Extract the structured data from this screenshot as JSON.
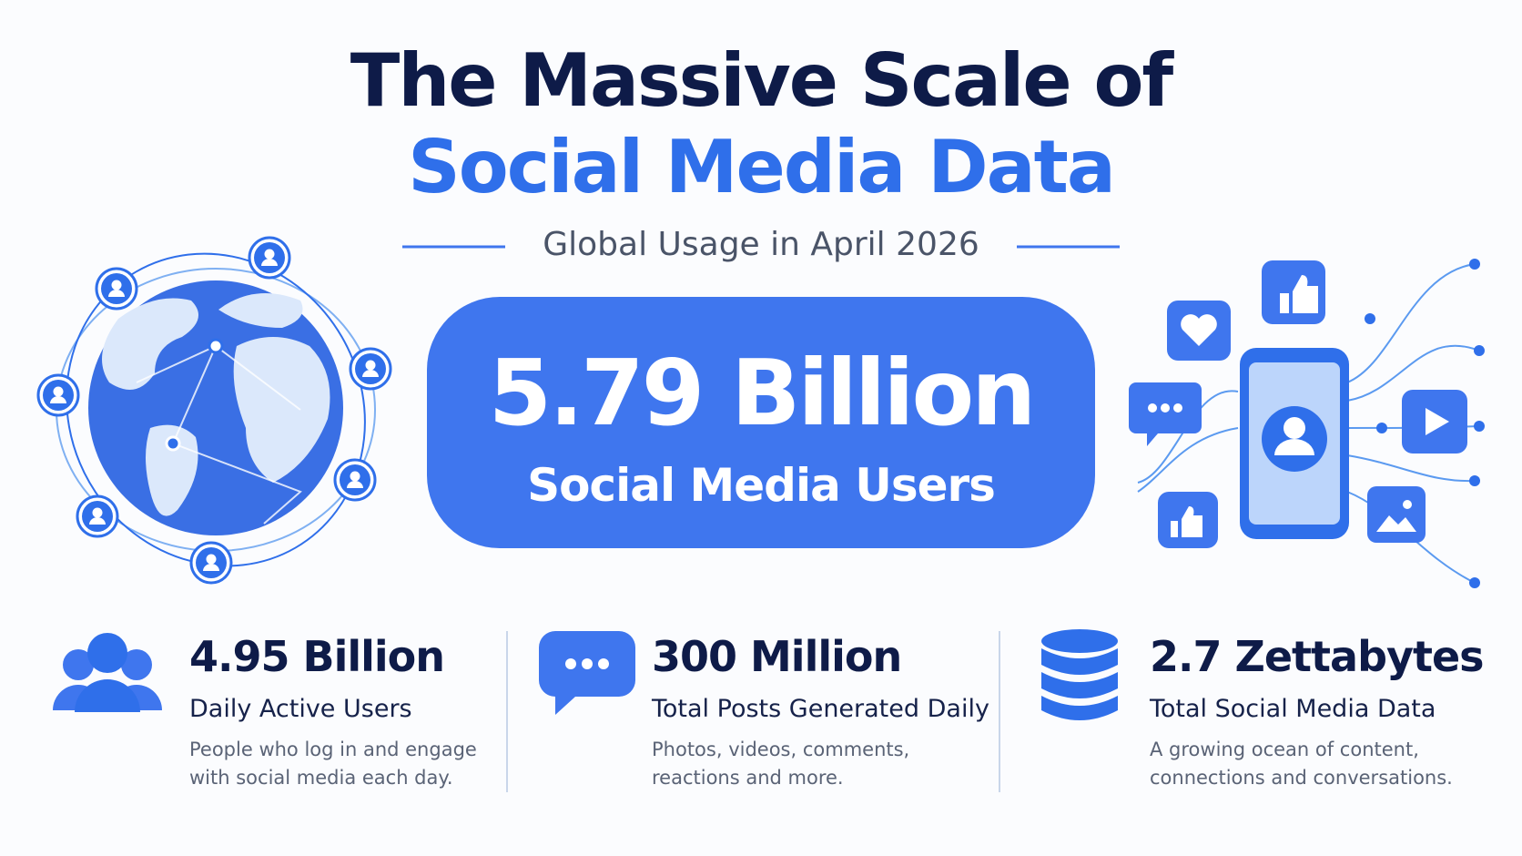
{
  "header": {
    "title_line1": "The Massive Scale of",
    "title_line2": "Social Media Data",
    "subtitle": "Global Usage in April 2026"
  },
  "hero": {
    "value": "5.79 Billion",
    "label": "Social Media Users"
  },
  "stats": [
    {
      "value": "4.95 Billion",
      "label": "Daily Active Users",
      "description": [
        "People who log in and engage",
        "with social media each day."
      ]
    },
    {
      "value": "300 Million",
      "label": "Total Posts Generated Daily",
      "description": [
        "Photos, videos, comments,",
        "reactions and more."
      ]
    },
    {
      "value": "2.7 Zettabytes",
      "label": "Total Social Media Data",
      "description": [
        "A growing ocean of content,",
        "connections and conversations."
      ]
    }
  ]
}
